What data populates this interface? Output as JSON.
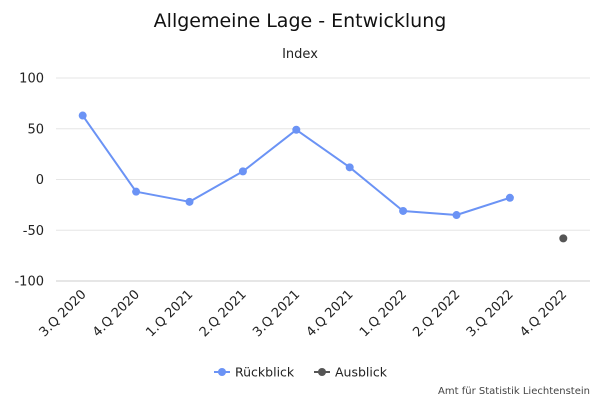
{
  "chart_data": {
    "type": "line",
    "title": "Allgemeine Lage - Entwicklung",
    "subtitle": "Index",
    "ylabel": "",
    "xlabel": "",
    "ylim": [
      -100,
      100
    ],
    "y_ticks": [
      "100",
      "50",
      "0",
      "-50",
      "-100"
    ],
    "y_tick_values": [
      100,
      50,
      0,
      -50,
      -100
    ],
    "grid": true,
    "legend_position": "bottom-center",
    "categories": [
      "3.Q 2020",
      "4.Q 2020",
      "1.Q 2021",
      "2.Q 2021",
      "3.Q 2021",
      "4.Q 2021",
      "1.Q 2022",
      "2.Q 2022",
      "3.Q 2022",
      "4.Q 2022"
    ],
    "series": [
      {
        "name": "Rückblick",
        "color": "#6b93f5",
        "values": [
          63,
          -12,
          -22,
          8,
          49,
          12,
          -31,
          -35,
          -18,
          null
        ]
      },
      {
        "name": "Ausblick",
        "color": "#555555",
        "values": [
          null,
          null,
          null,
          null,
          null,
          null,
          null,
          null,
          null,
          -58
        ]
      }
    ],
    "credits": "Amt für Statistik Liechtenstein"
  }
}
